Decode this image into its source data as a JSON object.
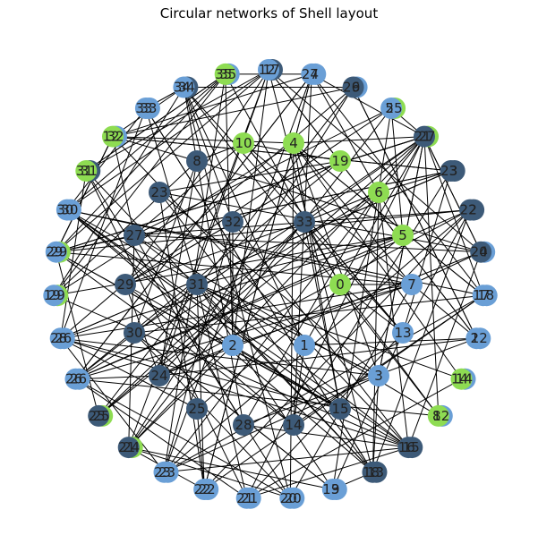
{
  "title": "Circular networks of Shell layout",
  "colors": {
    "green": "#8edc52",
    "blue": "#6a9fd6",
    "dark": "#3d5a78",
    "edge": "#000000"
  },
  "chart_data": {
    "type": "network",
    "layout": "shell",
    "overlap_pairs": [
      [
        "12",
        "17"
      ],
      [
        "27",
        "4"
      ],
      [
        "26",
        "9"
      ],
      [
        "5",
        "25"
      ],
      [
        "21",
        "27"
      ],
      [
        "23",
        "3"
      ],
      [
        "22",
        "2"
      ],
      [
        "20",
        "4"
      ],
      [
        "17",
        "18"
      ],
      [
        "2",
        "12"
      ],
      [
        "14",
        "14"
      ],
      [
        "8",
        "12"
      ],
      [
        "16",
        "15"
      ],
      [
        "18",
        "13"
      ],
      [
        "13",
        "9"
      ],
      [
        "20",
        "20"
      ],
      [
        "21",
        "21"
      ],
      [
        "22",
        "22"
      ],
      [
        "23",
        "23"
      ],
      [
        "21",
        "24"
      ],
      [
        "25",
        "25"
      ],
      [
        "26",
        "26"
      ],
      [
        "28",
        "26"
      ],
      [
        "19",
        "29"
      ],
      [
        "29",
        "29"
      ],
      [
        "30",
        "30"
      ],
      [
        "31",
        "31"
      ],
      [
        "12",
        "32"
      ],
      [
        "33",
        "33"
      ],
      [
        "34",
        "34"
      ],
      [
        "35",
        "35"
      ]
    ]
  }
}
